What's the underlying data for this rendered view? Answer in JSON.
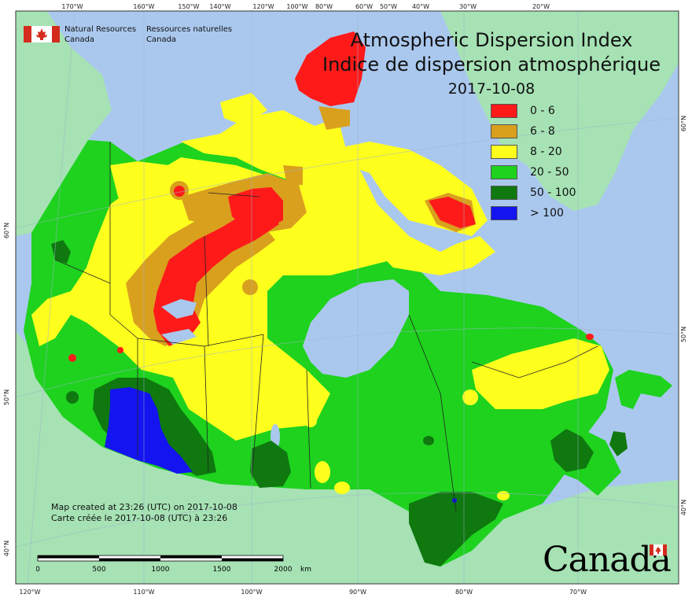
{
  "title": {
    "english": "Atmospheric Dispersion Index",
    "french": "Indice de dispersion atmosphérique",
    "date": "2017-10-08"
  },
  "agency": {
    "english_line1": "Natural Resources",
    "english_line2": "Canada",
    "french_line1": "Ressources naturelles",
    "french_line2": "Canada"
  },
  "legend": [
    {
      "label": "0 - 6",
      "color": "#ff1a1a"
    },
    {
      "label": "6 - 8",
      "color": "#d9a01e"
    },
    {
      "label": "8 - 20",
      "color": "#ffff1e"
    },
    {
      "label": "20 - 50",
      "color": "#1ed21e"
    },
    {
      "label": "50 - 100",
      "color": "#0f780f"
    },
    {
      "label": "> 100",
      "color": "#1414f0"
    }
  ],
  "credit": {
    "english": "Map created at 23:26 (UTC) on 2017-10-08",
    "french": "Carte créée le 2017-10-08 (UTC) à 23:26"
  },
  "scale_bar": {
    "ticks": [
      "0",
      "500",
      "1000",
      "1500",
      "2000"
    ],
    "unit": "km"
  },
  "wordmark": "Canada",
  "graticule_labels": {
    "top": [
      "170°W",
      "160°W",
      "150°W",
      "140°W",
      "120°W",
      "100°W",
      "80°W",
      "60°W",
      "50°W",
      "40°W",
      "30°W",
      "20°W"
    ],
    "bottom": [
      "120°W",
      "110°W",
      "100°W",
      "90°W",
      "80°W",
      "70°W"
    ],
    "left": [
      "60°N",
      "50°N",
      "40°N"
    ],
    "right": [
      "60°N",
      "50°N",
      "40°N"
    ]
  },
  "colors": {
    "ocean": "#aac8ee",
    "land_outside": "#a6e2b4",
    "border": "#222222"
  }
}
